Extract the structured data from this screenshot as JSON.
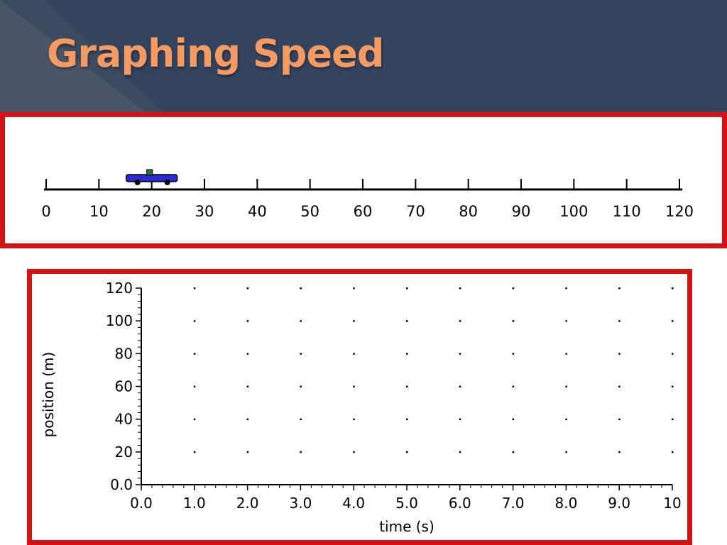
{
  "slide": {
    "title": "Graphing Speed",
    "colors": {
      "header_bg": "#34445f",
      "title": "#f49b63",
      "frame": "#d41414",
      "car": "#2a2ad6"
    }
  },
  "track": {
    "min": 0,
    "max": 120,
    "step": 10,
    "tick_labels": [
      "0",
      "10",
      "20",
      "30",
      "40",
      "50",
      "60",
      "70",
      "80",
      "90",
      "100",
      "110",
      "120"
    ],
    "car_position": 20
  },
  "chart_data": {
    "type": "scatter",
    "xlabel": "time (s)",
    "ylabel": "position (m)",
    "xlim": [
      0,
      10
    ],
    "ylim": [
      0,
      120
    ],
    "x_ticks": [
      "0.0",
      "1.0",
      "2.0",
      "3.0",
      "4.0",
      "5.0",
      "6.0",
      "7.0",
      "8.0",
      "9.0",
      "10"
    ],
    "y_ticks": [
      "0.0",
      "20",
      "40",
      "60",
      "80",
      "100",
      "120"
    ],
    "grid": "dots",
    "series": []
  }
}
